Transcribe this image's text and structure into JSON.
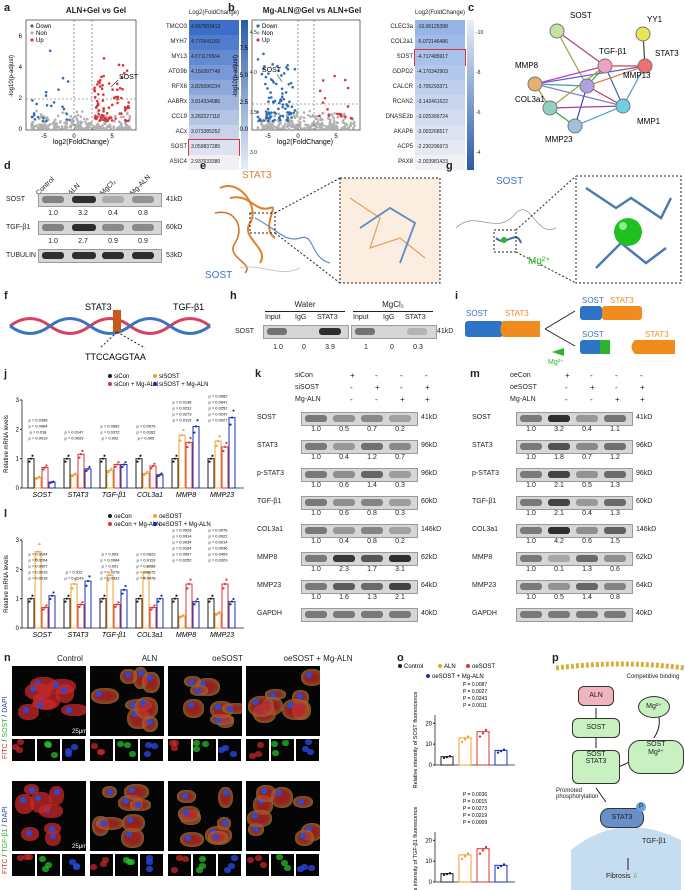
{
  "panels": {
    "a": "a",
    "b": "b",
    "c": "c",
    "d": "d",
    "e": "e",
    "f": "f",
    "g": "g",
    "h": "h",
    "i": "i",
    "j": "j",
    "k": "k",
    "l": "l",
    "m": "m",
    "n": "n",
    "o": "o",
    "p": "p"
  },
  "a": {
    "title": "ALN+Gel vs Gel",
    "legend": [
      "Down",
      "Non",
      "Up"
    ],
    "xlabel": "log2(FoldChange)",
    "ylabel": "-log10(p-adjust)",
    "annot": "SOST",
    "heat_title": "Log2(FoldChange)",
    "genes": [
      "TMCO3",
      "MYH7",
      "MYL3",
      "ATG9b",
      "RFX6",
      "AABRx",
      "CCL9",
      "ACx",
      "SOST",
      "ASIC4"
    ],
    "values": [
      "4.867993413",
      "4.770541183",
      "4.671176564",
      "4.150397748",
      "3.825096234",
      "3.814334086",
      "3.282227118",
      "3.073385252",
      "3.059837285",
      "2.937633380"
    ],
    "scale": [
      "4.5",
      "4.0",
      "3.5",
      "3.0"
    ],
    "xticks": [
      "-5",
      "0",
      "5"
    ],
    "yticks": [
      "0",
      "2",
      "4",
      "6"
    ]
  },
  "b": {
    "title": "Mg-ALN@Gel vs ALN+Gel",
    "legend": [
      "Down",
      "Non",
      "Up"
    ],
    "xlabel": "log2(FoldChange)",
    "ylabel": "-log10(p-adjust)",
    "annot": "SOST",
    "heat_title": "Log2(FoldChange)",
    "genes": [
      "CLEC3a",
      "COL2a1",
      "SOST",
      "GDPD2",
      "CALCR",
      "RCAN2",
      "DNASE2b",
      "AKAP6",
      "ACP5",
      "PAX8"
    ],
    "values": [
      "-10.06125398",
      "-5.072146486",
      "-4.717485917",
      "-4.170342903",
      "-3.705293371",
      "-3.142461622",
      "-3.025365724",
      "-3.003268517",
      "-2.230296973",
      "-2.003981433"
    ],
    "scale": [
      "-10",
      "-8",
      "-6",
      "-4"
    ],
    "xticks": [
      "-5",
      "0",
      "5"
    ],
    "yticks": [
      "0.0",
      "2.5",
      "5.0",
      "7.5"
    ]
  },
  "c": {
    "nodes": [
      "SOST",
      "YY1",
      "MMP8",
      "TGF-β1",
      "STAT3",
      "MMP13",
      "COL3a1",
      "MMP23",
      "MMP1"
    ]
  },
  "d": {
    "columns": [
      "Control",
      "ALN",
      "MgCl₂",
      "Mg-ALN"
    ],
    "rows": [
      {
        "name": "SOST",
        "kd": "41kD",
        "vals": [
          "1.0",
          "3.2",
          "0.4",
          "0.8"
        ]
      },
      {
        "name": "TGF-β1",
        "kd": "60kD",
        "vals": [
          "1.0",
          "2.7",
          "0.9",
          "0.9"
        ]
      },
      {
        "name": "TUBULIN",
        "kd": "53kD",
        "vals": []
      }
    ]
  },
  "e": {
    "labels": [
      "STAT3",
      "SOST"
    ]
  },
  "f": {
    "labels": [
      "STAT3",
      "TGF-β1",
      "TTCCAGGTAA"
    ]
  },
  "g": {
    "labels": [
      "SOST",
      "Mg²⁺"
    ]
  },
  "h": {
    "groups": [
      "Water",
      "MgCl₂"
    ],
    "lanes": [
      "Input",
      "IgG",
      "STAT3",
      "Input",
      "IgG",
      "STAT3"
    ],
    "row": "SOST",
    "kd": "41kD",
    "vals": [
      "1.0",
      "0",
      "3.9",
      "1",
      "0",
      "0.3"
    ]
  },
  "i": {
    "labels": [
      "SOST",
      "STAT3",
      "SOST",
      "STAT3",
      "SOST",
      "STAT3",
      "Mg²⁺"
    ]
  },
  "j": {
    "legend": [
      "siCon",
      "siSOST",
      "siCon + Mg-ALN",
      "siSOST + Mg-ALN"
    ],
    "ylabel": "Relative mRNA levels",
    "genes": [
      "SOST",
      "STAT3",
      "TGF-β1",
      "COL3a1",
      "MMP8",
      "MMP23"
    ],
    "yticks": [
      "0",
      "1",
      "2",
      "3"
    ],
    "chart_data": {
      "type": "bar",
      "categories": [
        "SOST",
        "STAT3",
        "TGF-β1",
        "COL3a1",
        "MMP8",
        "MMP23"
      ],
      "series": [
        {
          "name": "siCon",
          "values": [
            1.0,
            1.0,
            1.0,
            1.0,
            1.0,
            1.0
          ]
        },
        {
          "name": "siSOST",
          "values": [
            0.35,
            0.45,
            0.6,
            0.5,
            1.8,
            1.6
          ]
        },
        {
          "name": "siCon + Mg-ALN",
          "values": [
            0.7,
            1.15,
            0.8,
            0.75,
            1.55,
            1.4
          ]
        },
        {
          "name": "siSOST + Mg-ALN",
          "values": [
            0.2,
            0.65,
            0.8,
            0.45,
            2.1,
            2.4
          ]
        }
      ],
      "ylim": [
        0,
        3
      ]
    },
    "pvals": [
      [
        "p = 0.0019",
        "p = 0.018",
        "p = 0.0064",
        "p = 0.0358"
      ],
      [
        "p = 0.0029",
        "p = 0.0147"
      ],
      [
        "p = 0.002",
        "p = 0.0372",
        "p = 0.0062"
      ],
      [
        "p = 0.005",
        "p = 0.0162",
        "p = 0.0076"
      ],
      [
        "p = 0.0115",
        "p = 0.0273",
        "p = 0.0231",
        "p = 0.0138"
      ],
      [
        "p = 0.0027",
        "p = 0.0247",
        "p = 0.0252",
        "p = 0.0041",
        "p = 0.0082"
      ]
    ]
  },
  "k": {
    "conds": [
      [
        "siCon",
        "+",
        "-",
        "-",
        "-"
      ],
      [
        "siSOST",
        "-",
        "+",
        "-",
        "+"
      ],
      [
        "Mg-ALN",
        "-",
        "-",
        "+",
        "+"
      ]
    ],
    "rows": [
      {
        "name": "SOST",
        "kd": "41kD",
        "vals": [
          "1.0",
          "0.5",
          "0.7",
          "0.2"
        ]
      },
      {
        "name": "STAT3",
        "kd": "96kD",
        "vals": [
          "1.0",
          "0.4",
          "1.2",
          "0.7"
        ]
      },
      {
        "name": "p-STAT3",
        "kd": "96kD",
        "vals": [
          "1.0",
          "0.6",
          "1.4",
          "0.3"
        ]
      },
      {
        "name": "TGF-β1",
        "kd": "60kD",
        "vals": [
          "1.0",
          "0.6",
          "0.8",
          "0.3"
        ]
      },
      {
        "name": "COL3a1",
        "kd": "146kD",
        "vals": [
          "1.0",
          "0.4",
          "0.8",
          "0.2"
        ]
      },
      {
        "name": "MMP8",
        "kd": "62kD",
        "vals": [
          "1.0",
          "2.3",
          "1.7",
          "3.1"
        ]
      },
      {
        "name": "MMP23",
        "kd": "64kD",
        "vals": [
          "1.0",
          "1.6",
          "1.3",
          "2.1"
        ]
      },
      {
        "name": "GAPDH",
        "kd": "40kD",
        "vals": []
      }
    ]
  },
  "l": {
    "legend": [
      "oeCon",
      "oeSOST",
      "oeCon + Mg-ALN",
      "oeSOST + Mg-ALN"
    ],
    "ylabel": "Relative mRNA levels",
    "genes": [
      "SOST",
      "STAT3",
      "TGF-β1",
      "COL3a1",
      "MMP8",
      "MMP23"
    ],
    "yticks": [
      "0",
      "1",
      "2",
      "3"
    ],
    "chart_data": {
      "type": "bar",
      "categories": [
        "SOST",
        "STAT3",
        "TGF-β1",
        "COL3a1",
        "MMP8",
        "MMP23"
      ],
      "series": [
        {
          "name": "oeCon",
          "values": [
            1.0,
            1.0,
            1.0,
            1.0,
            1.0,
            1.0
          ]
        },
        {
          "name": "oeSOST",
          "values": [
            2.6,
            1.5,
            1.8,
            1.9,
            0.4,
            0.5
          ]
        },
        {
          "name": "oeCon + Mg-ALN",
          "values": [
            0.7,
            0.8,
            0.8,
            0.7,
            1.5,
            1.5
          ]
        },
        {
          "name": "oeSOST + Mg-ALN",
          "values": [
            1.1,
            1.6,
            1.3,
            1.0,
            0.9,
            0.9
          ]
        }
      ],
      "ylim": [
        0,
        3
      ]
    },
    "pvals": [
      [
        "p = 0.0018",
        "p = 0.0015",
        "p = 0.0007",
        "p = 0.0204",
        "p = 0.0104"
      ],
      [
        "p = 0.0143",
        "p = 0.012"
      ],
      [
        "p = 0.0332",
        "p = 0.0278",
        "p = 0.001",
        "p = 0.0084",
        "p = 0.003"
      ],
      [
        "p = 0.0478",
        "p = 0.0072",
        "p = 0.0088",
        "p = 0.0119",
        "p = 0.0023"
      ],
      [
        "p = 0.0252",
        "p = 0.0097",
        "p = 0.0164",
        "p = 0.0034",
        "p = 0.0014",
        "p = 0.0026"
      ],
      [
        "p = 0.0329",
        "p = 0.0409",
        "p = 0.0036",
        "p = 0.0014",
        "p = 0.0022",
        "p = 0.0076"
      ]
    ]
  },
  "m": {
    "conds": [
      [
        "oeCon",
        "+",
        "-",
        "-",
        "-"
      ],
      [
        "oeSOST",
        "-",
        "+",
        "-",
        "+"
      ],
      [
        "Mg-ALN",
        "-",
        "-",
        "+",
        "+"
      ]
    ],
    "rows": [
      {
        "name": "SOST",
        "kd": "41kD",
        "vals": [
          "1.0",
          "3.2",
          "0.4",
          "1.1"
        ]
      },
      {
        "name": "STAT3",
        "kd": "96kD",
        "vals": [
          "1.0",
          "1.8",
          "0.7",
          "1.2"
        ]
      },
      {
        "name": "p-STAT3",
        "kd": "96kD",
        "vals": [
          "1.0",
          "2.1",
          "0.5",
          "1.3"
        ]
      },
      {
        "name": "TGF-β1",
        "kd": "60kD",
        "vals": [
          "1.0",
          "2.1",
          "0.4",
          "1.3"
        ]
      },
      {
        "name": "COL3a1",
        "kd": "146kD",
        "vals": [
          "1.0",
          "4.2",
          "0.6",
          "1.5"
        ]
      },
      {
        "name": "MMP8",
        "kd": "62kD",
        "vals": [
          "1.0",
          "0.1",
          "1.3",
          "0.6"
        ]
      },
      {
        "name": "MMP23",
        "kd": "64kD",
        "vals": [
          "1.0",
          "0.5",
          "1.4",
          "0.8"
        ]
      },
      {
        "name": "GAPDH",
        "kd": "40kD",
        "vals": []
      }
    ]
  },
  "n": {
    "cols": [
      "Control",
      "ALN",
      "oeSOST",
      "oeSOST + Mg-ALN"
    ],
    "row1_label": [
      "FITC",
      "/",
      "SOST",
      "/",
      "DAPI"
    ],
    "row2_label": [
      "FITC",
      "/",
      "TGF-β1",
      "/",
      "DAPI"
    ],
    "scale": "25μm"
  },
  "o": {
    "legend": [
      "Control",
      "ALN",
      "oeSOST",
      "oeSOST + Mg-ALN"
    ],
    "top": {
      "ylabel": "Relative intensity of SOST fluorescence",
      "yticks": [
        "0",
        "10",
        "20"
      ],
      "pvals": [
        "P = 0.0011",
        "P = 0.0243",
        "P = 0.0027",
        "P = 0.0087"
      ],
      "chart_data": {
        "type": "bar",
        "categories": [
          "Control",
          "ALN",
          "oeSOST",
          "oeSOST + Mg-ALN"
        ],
        "values": [
          4,
          13,
          16,
          7
        ],
        "ylim": [
          0,
          24
        ]
      }
    },
    "bottom": {
      "ylabel": "Relative intensity of TGF-β1 fluorescence",
      "yticks": [
        "0",
        "10",
        "20"
      ],
      "pvals": [
        "P = 0.0009",
        "P = 0.0219",
        "P = 0.0273",
        "P = 0.0015",
        "P = 0.0036"
      ],
      "chart_data": {
        "type": "bar",
        "categories": [
          "Control",
          "ALN",
          "oeSOST",
          "oeSOST + Mg-ALN"
        ],
        "values": [
          4,
          13,
          16,
          8
        ],
        "ylim": [
          0,
          24
        ]
      }
    }
  },
  "p": {
    "aln": "ALN",
    "sost": "SOST",
    "sost2": "SOST",
    "stat3": "STAT3",
    "comp": "Competitive binding",
    "mg": "Mg²⁺",
    "sost3": "SOST",
    "mg2": "Mg²⁺",
    "promo": "Promoted phosphorylation",
    "stat3b": "STAT3",
    "p": "P",
    "tgf": "TGF-β1",
    "fib": "Fibrosis"
  },
  "colors": {
    "down": "#2f6db0",
    "up": "#d9343a",
    "non": "#b0b0b0",
    "orange": "#f0a030",
    "blue": "#3a74c0",
    "red": "#d9343a",
    "darkblue": "#1a2fb0"
  }
}
